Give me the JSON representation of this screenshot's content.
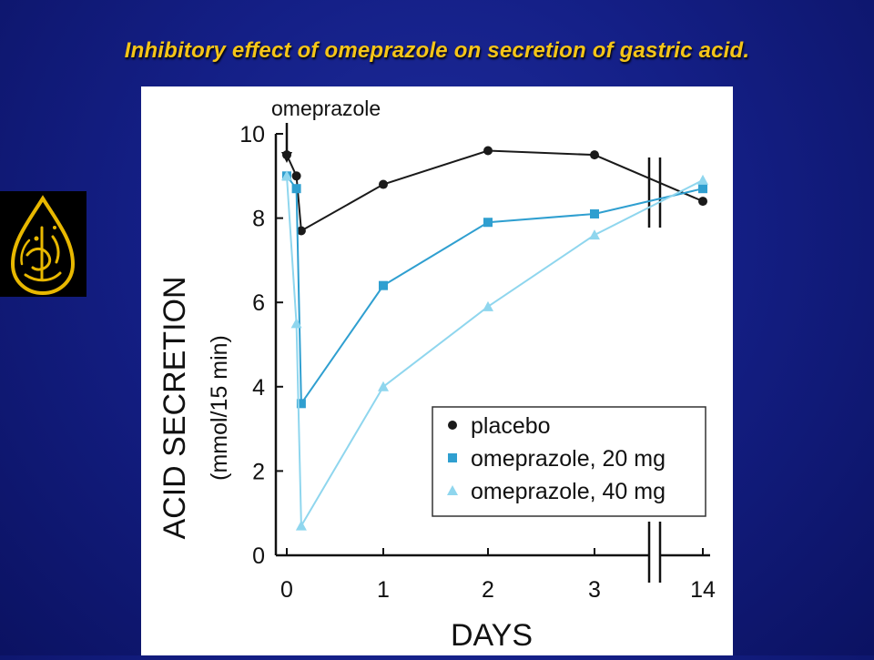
{
  "slide": {
    "title": "Inhibitory effect of omeprazole on secretion of gastric acid."
  },
  "colors": {
    "background": "#141f86",
    "title": "#f5c518",
    "placebo": "#1a1a1a",
    "omeprazole_20": "#2f9fd0",
    "omeprazole_40": "#8fd6ee"
  },
  "chart_data": {
    "type": "line",
    "annotation": "omeprazole",
    "ylabel_line1": "ACID SECRETION",
    "ylabel_line2": "(mmol/15 min)",
    "xlabel": "DAYS",
    "ylim": [
      0,
      10
    ],
    "yticks": [
      "0",
      "2",
      "4",
      "6",
      "8",
      "10"
    ],
    "xticks": [
      "0",
      "1",
      "2",
      "3",
      "14"
    ],
    "axis_break": "between 3 and 14",
    "legend_position": "bottom-right",
    "series": [
      {
        "name": "placebo",
        "marker": "circle",
        "x": [
          0,
          0.1,
          0.15,
          1,
          2,
          3,
          14
        ],
        "y": [
          9.5,
          9.0,
          7.7,
          8.8,
          9.6,
          9.5,
          8.4
        ]
      },
      {
        "name": "omeprazole, 20 mg",
        "marker": "square",
        "x": [
          0,
          0.1,
          0.15,
          1,
          2,
          3,
          14
        ],
        "y": [
          9.0,
          8.7,
          3.6,
          6.4,
          7.9,
          8.1,
          8.7
        ]
      },
      {
        "name": "omeprazole, 40 mg",
        "marker": "triangle",
        "x": [
          0,
          0.1,
          0.15,
          1,
          2,
          3,
          14
        ],
        "y": [
          9.0,
          5.5,
          0.7,
          4.0,
          5.9,
          7.6,
          8.9
        ]
      }
    ]
  }
}
